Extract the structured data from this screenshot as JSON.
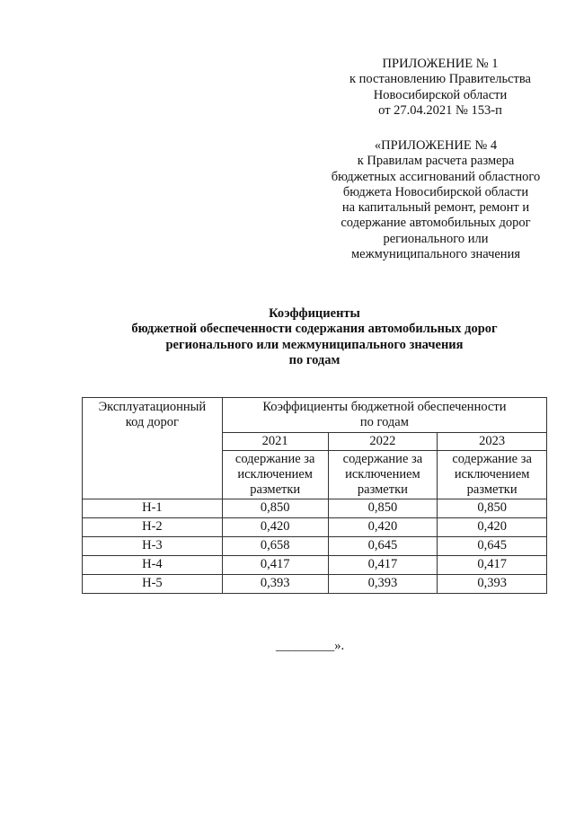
{
  "appendix1": {
    "lines": [
      "ПРИЛОЖЕНИЕ № 1",
      "к постановлению Правительства",
      "Новосибирской области",
      "от 27.04.2021  № 153-п"
    ]
  },
  "appendix4": {
    "lines": [
      "«ПРИЛОЖЕНИЕ № 4",
      "к Правилам расчета размера",
      "бюджетных ассигнований областного",
      "бюджета Новосибирской области",
      "на капитальный ремонт, ремонт и",
      "содержание автомобильных дорог",
      "регионального или",
      "межмуниципального значения"
    ]
  },
  "title": {
    "lines": [
      "Коэффициенты",
      "бюджетной обеспеченности содержания автомобильных дорог",
      "регионального или межмуниципального значения",
      "по годам"
    ]
  },
  "table": {
    "col1_header": "Эксплуатационный код дорог",
    "group_header": "Коэффициенты бюджетной обеспеченности по годам",
    "years": [
      "2021",
      "2022",
      "2023"
    ],
    "subheader": "содержание за исключением разметки",
    "rows": [
      {
        "code": "Н-1",
        "values": [
          "0,850",
          "0,850",
          "0,850"
        ]
      },
      {
        "code": "Н-2",
        "values": [
          "0,420",
          "0,420",
          "0,420"
        ]
      },
      {
        "code": "Н-3",
        "values": [
          "0,658",
          "0,645",
          "0,645"
        ]
      },
      {
        "code": "Н-4",
        "values": [
          "0,417",
          "0,417",
          "0,417"
        ]
      },
      {
        "code": "Н-5",
        "values": [
          "0,393",
          "0,393",
          "0,393"
        ]
      }
    ]
  },
  "footer": "_________»."
}
